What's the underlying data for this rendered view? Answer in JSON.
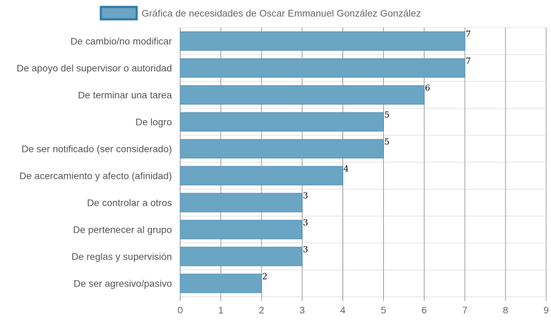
{
  "chart_data": {
    "type": "bar",
    "orientation": "horizontal",
    "categories": [
      "De cambio/no modificar",
      "De apoyo del supervisor o autoridad",
      "De terminar una tarea",
      "De logro",
      "De ser notificado (ser considerado)",
      "De acercamiento y afecto (afinidad)",
      "De controlar a otros",
      "De pertenecer al grupo",
      "De reglas y supervisión",
      "De ser agresivo/pasivo"
    ],
    "series": [
      {
        "name": "Gráfica de necesidades de Oscar Emmanuel González González",
        "values": [
          7,
          7,
          6,
          5,
          5,
          4,
          3,
          3,
          3,
          2
        ]
      }
    ],
    "x_ticks": [
      "0",
      "1",
      "2",
      "3",
      "4",
      "5",
      "6",
      "7",
      "8",
      "9"
    ],
    "xlim": [
      0,
      9
    ],
    "grid": true,
    "legend_position": "top",
    "colors": {
      "bar_fill": "#6ba5c4",
      "bar_border": "#4f8fb3",
      "legend_border": "#2e7aa8",
      "grid": "#cccccc",
      "grid_strong": "#888888"
    }
  }
}
